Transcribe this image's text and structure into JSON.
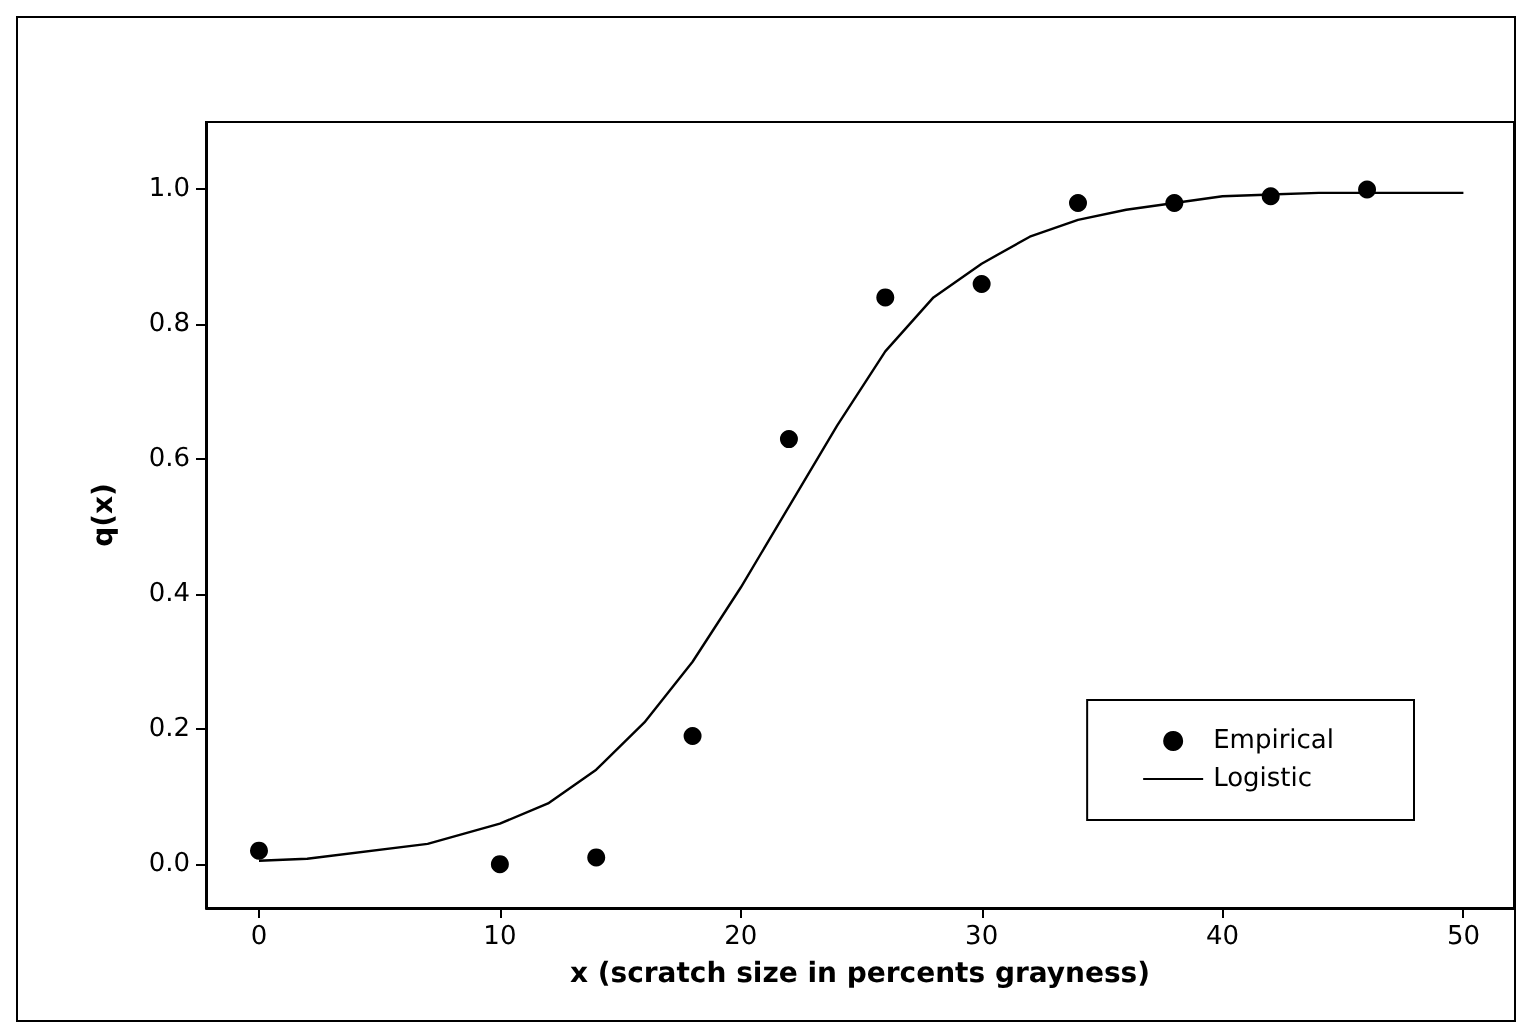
{
  "chart_data": {
    "type": "scatter",
    "xlabel": "x (scratch size in percents grayness)",
    "ylabel": "q(x)",
    "xlim": [
      -2.2,
      52.1
    ],
    "xticks": [
      0,
      10,
      20,
      30,
      40,
      50
    ],
    "ylim": [
      -0.065,
      1.1
    ],
    "yticks": [
      {
        "value": 0,
        "label": "0.0"
      },
      0.2,
      0.4,
      0.6,
      0.8,
      {
        "value": 1,
        "label": "1.0"
      }
    ],
    "grid": false,
    "legend": "bottom right",
    "series": [
      {
        "name": "Empirical",
        "marker": "circle",
        "color": "#000000",
        "x": [
          0,
          10,
          14,
          18,
          22,
          26,
          30,
          34,
          38,
          42,
          46
        ],
        "values": [
          0.02,
          0,
          0.01,
          0.19,
          0.63,
          0.84,
          0.86,
          0.98,
          0.98,
          0.99,
          1.0
        ]
      },
      {
        "name": "Logistic",
        "type": "line",
        "marker": "none",
        "color": "#000000",
        "line_style": "solid",
        "x": [
          0,
          2,
          7,
          10,
          12,
          14,
          16,
          18,
          20,
          22,
          24,
          26,
          28,
          30,
          32,
          34,
          36,
          38,
          40,
          44,
          50
        ],
        "values": [
          0.005,
          0.008,
          0.03,
          0.06,
          0.09,
          0.14,
          0.21,
          0.3,
          0.41,
          0.53,
          0.65,
          0.76,
          0.84,
          0.89,
          0.93,
          0.955,
          0.97,
          0.98,
          0.99,
          0.995,
          0.995
        ]
      }
    ]
  }
}
